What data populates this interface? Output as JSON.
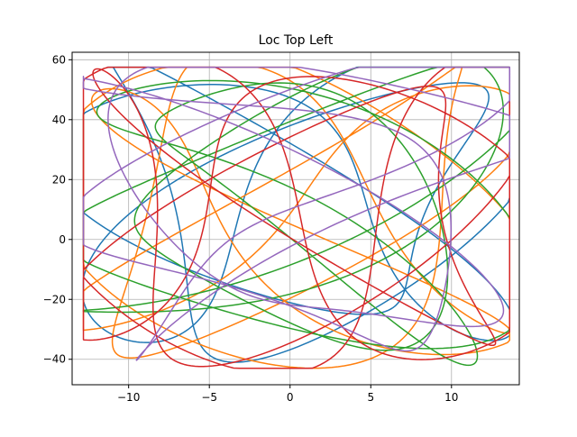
{
  "chart_data": {
    "type": "line",
    "title": "Loc Top Left",
    "xlabel": "",
    "ylabel": "",
    "xlim": [
      -13.5,
      14.2
    ],
    "ylim": [
      -48.5,
      62.5
    ],
    "xticks": [
      -10,
      -5,
      0,
      5,
      10
    ],
    "yticks": [
      -40,
      -20,
      0,
      20,
      40,
      60
    ],
    "grid": true,
    "legend": "none",
    "colors": {
      "series": [
        "#1f77b4",
        "#ff7f0e",
        "#2ca02c",
        "#d62728",
        "#9467bd"
      ],
      "grid": "#b0b0b0",
      "axes": "#000000",
      "background": "#ffffff"
    },
    "series": [
      {
        "color": "#1f77b4",
        "params": {
          "A": 12,
          "B": 45,
          "xc": 0.5,
          "yc": 12,
          "fx": 3,
          "fy": 4,
          "phx": 0.0,
          "phy": 0.6,
          "ax2": 3.5,
          "ay2": 8,
          "gx": 7,
          "gy": 5,
          "phx2": 0.3,
          "phy2": 1.1
        }
      },
      {
        "color": "#ff7f0e",
        "params": {
          "A": 12.5,
          "B": 46,
          "xc": 0.3,
          "yc": 10,
          "fx": 4,
          "fy": 5,
          "phx": 0.9,
          "phy": 0.2,
          "ax2": 3.0,
          "ay2": 7,
          "gx": 9,
          "gy": 7,
          "phx2": 1.4,
          "phy2": 0.5
        }
      },
      {
        "color": "#2ca02c",
        "params": {
          "A": 12,
          "B": 44,
          "xc": 0.8,
          "yc": 11,
          "fx": 5,
          "fy": 4,
          "phx": 1.7,
          "phy": 2.3,
          "ax2": 3.2,
          "ay2": 9,
          "gx": 6,
          "gy": 9,
          "phx2": 2.1,
          "phy2": 0.9
        }
      },
      {
        "color": "#d62728",
        "params": {
          "A": 12.8,
          "B": 48,
          "xc": 0.4,
          "yc": 9,
          "fx": 3,
          "fy": 5,
          "phx": 2.6,
          "phy": 1.3,
          "ax2": 3.6,
          "ay2": 6,
          "gx": 8,
          "gy": 6,
          "phx2": 0.7,
          "phy2": 2.6
        }
      },
      {
        "color": "#9467bd",
        "params": {
          "A": 12.2,
          "B": 45,
          "xc": 0.6,
          "yc": 12,
          "fx": 4,
          "fy": 3,
          "phx": 3.4,
          "phy": 0.8,
          "ax2": 3.3,
          "ay2": 8,
          "gx": 7,
          "gy": 8,
          "phx2": 1.9,
          "phy2": 1.7
        }
      }
    ]
  }
}
